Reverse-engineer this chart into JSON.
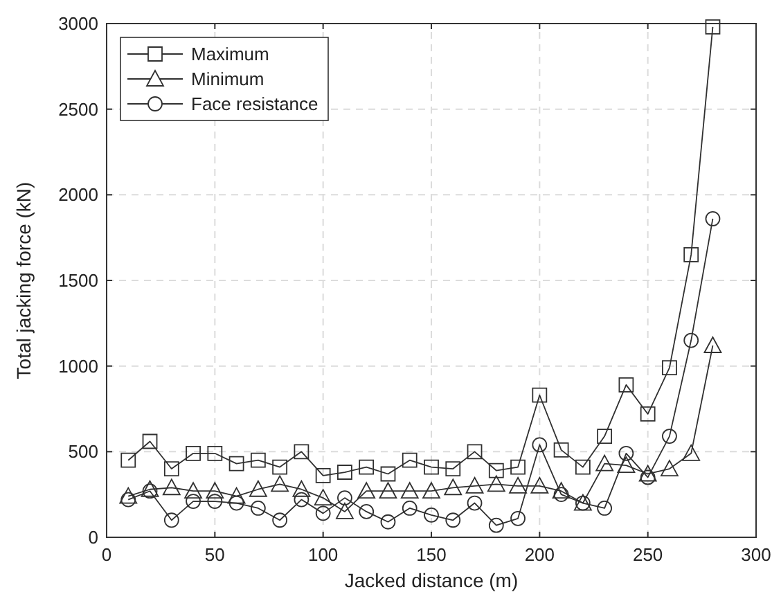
{
  "chart_data": {
    "type": "line",
    "xlabel": "Jacked distance (m)",
    "ylabel": "Total jacking force (kN)",
    "x": [
      10,
      20,
      30,
      40,
      50,
      60,
      70,
      80,
      90,
      100,
      110,
      120,
      130,
      140,
      150,
      160,
      170,
      180,
      190,
      200,
      210,
      220,
      230,
      240,
      250,
      260,
      270,
      280
    ],
    "series": [
      {
        "name": "Maximum",
        "color": "#303030",
        "marker": "square",
        "values": [
          450,
          560,
          400,
          490,
          490,
          430,
          450,
          410,
          500,
          360,
          380,
          410,
          370,
          450,
          410,
          400,
          500,
          390,
          410,
          830,
          510,
          410,
          590,
          890,
          720,
          990,
          1650,
          2980
        ]
      },
      {
        "name": "Minimum",
        "color": "#303030",
        "marker": "triangle",
        "values": [
          240,
          280,
          290,
          270,
          270,
          240,
          280,
          310,
          280,
          230,
          150,
          270,
          270,
          270,
          270,
          290,
          300,
          310,
          300,
          300,
          270,
          200,
          430,
          420,
          370,
          400,
          490,
          1120
        ]
      },
      {
        "name": "Face resistance",
        "color": "#303030",
        "marker": "circle",
        "values": [
          220,
          270,
          100,
          210,
          210,
          200,
          170,
          100,
          220,
          140,
          230,
          150,
          90,
          170,
          130,
          100,
          200,
          70,
          110,
          540,
          250,
          200,
          170,
          490,
          350,
          590,
          1150,
          1860
        ]
      }
    ],
    "xlim": [
      0,
      300
    ],
    "xticks": [
      0,
      50,
      100,
      150,
      200,
      250,
      300
    ],
    "ylim": [
      0,
      3000
    ],
    "yticks": [
      0,
      500,
      1000,
      1500,
      2000,
      2500,
      3000
    ],
    "grid": true,
    "legend": "top left",
    "line_style": "solid"
  }
}
